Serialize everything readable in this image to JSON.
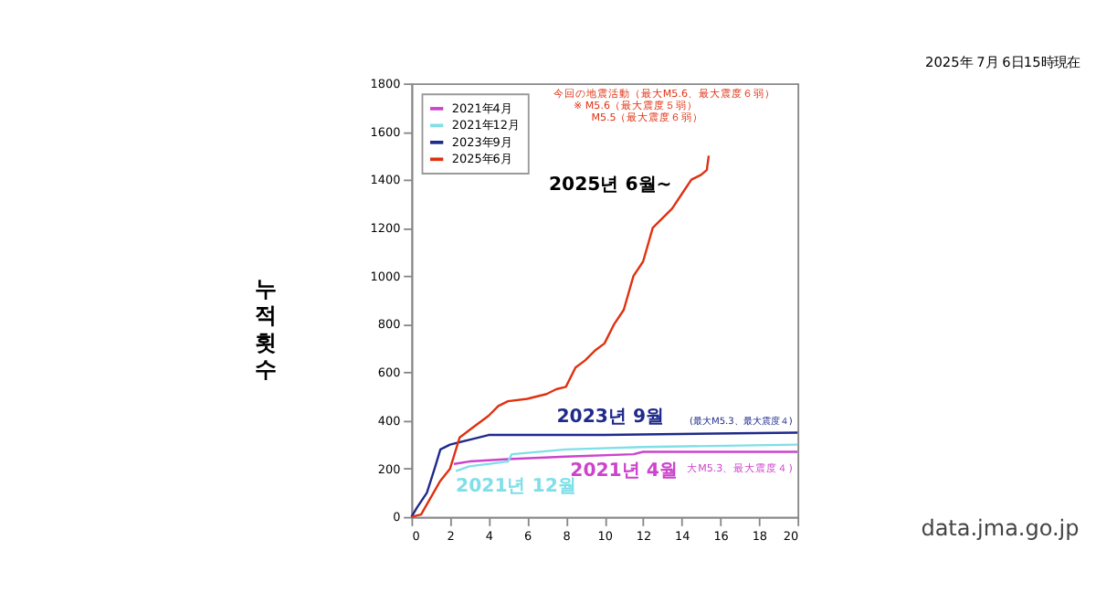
{
  "chart_data": {
    "type": "line",
    "title": "2025年 7月 6日15時現在",
    "ylabel": "누적횟수",
    "xlim": [
      0,
      20
    ],
    "xticks": [
      0,
      2,
      4,
      6,
      8,
      10,
      12,
      14,
      16,
      18,
      20
    ],
    "ylim": [
      0,
      1800
    ],
    "yticks": [
      0,
      200,
      400,
      600,
      800,
      1000,
      1200,
      1400,
      1600,
      1800
    ],
    "grid": false,
    "legend": "top left",
    "marker": "none",
    "line_style": "solid",
    "series": [
      {
        "name": "2021年4月",
        "color": "#cc44cc",
        "x": [
          2.2,
          3,
          5,
          8,
          11.5,
          12,
          20
        ],
        "values": [
          220,
          230,
          240,
          250,
          260,
          270,
          270
        ]
      },
      {
        "name": "2021年12月",
        "color": "#7fdfe8",
        "x": [
          2.3,
          3,
          5,
          5.2,
          8,
          12,
          20
        ],
        "values": [
          190,
          210,
          230,
          260,
          280,
          290,
          300
        ]
      },
      {
        "name": "2023年9月",
        "color": "#1f2a8a",
        "x": [
          0,
          0.3,
          0.8,
          1.2,
          1.5,
          2,
          3,
          4,
          6,
          10,
          20
        ],
        "values": [
          0,
          40,
          100,
          200,
          280,
          300,
          320,
          340,
          340,
          340,
          350
        ]
      },
      {
        "name": "2025年6月",
        "color": "#e03010",
        "x": [
          0,
          0.5,
          1,
          1.5,
          2,
          2.5,
          3,
          4,
          4.5,
          5,
          6,
          7,
          7.5,
          8,
          8.5,
          9,
          9.5,
          10,
          10.5,
          11,
          11.5,
          12,
          12.5,
          13,
          13.5,
          14,
          14.5,
          15,
          15.3,
          15.4
        ],
        "values": [
          0,
          10,
          80,
          150,
          200,
          330,
          360,
          420,
          460,
          480,
          490,
          510,
          530,
          540,
          620,
          650,
          690,
          720,
          800,
          860,
          1000,
          1060,
          1200,
          1240,
          1280,
          1340,
          1400,
          1420,
          1440,
          1500
        ]
      }
    ],
    "annotations": [
      "今回の地震活動（最大M5.6、最大震度６弱）",
      "※ M5.6（最大震度５弱）",
      "M5.5（最大震度６弱）",
      "2025년 6월~",
      "2023년 9월",
      "(最大M5.3、最大震度４)",
      "2021년 12월",
      "2021년 4월",
      "大M5.3、最大震度４)",
      "data.jma.go.jp"
    ]
  }
}
